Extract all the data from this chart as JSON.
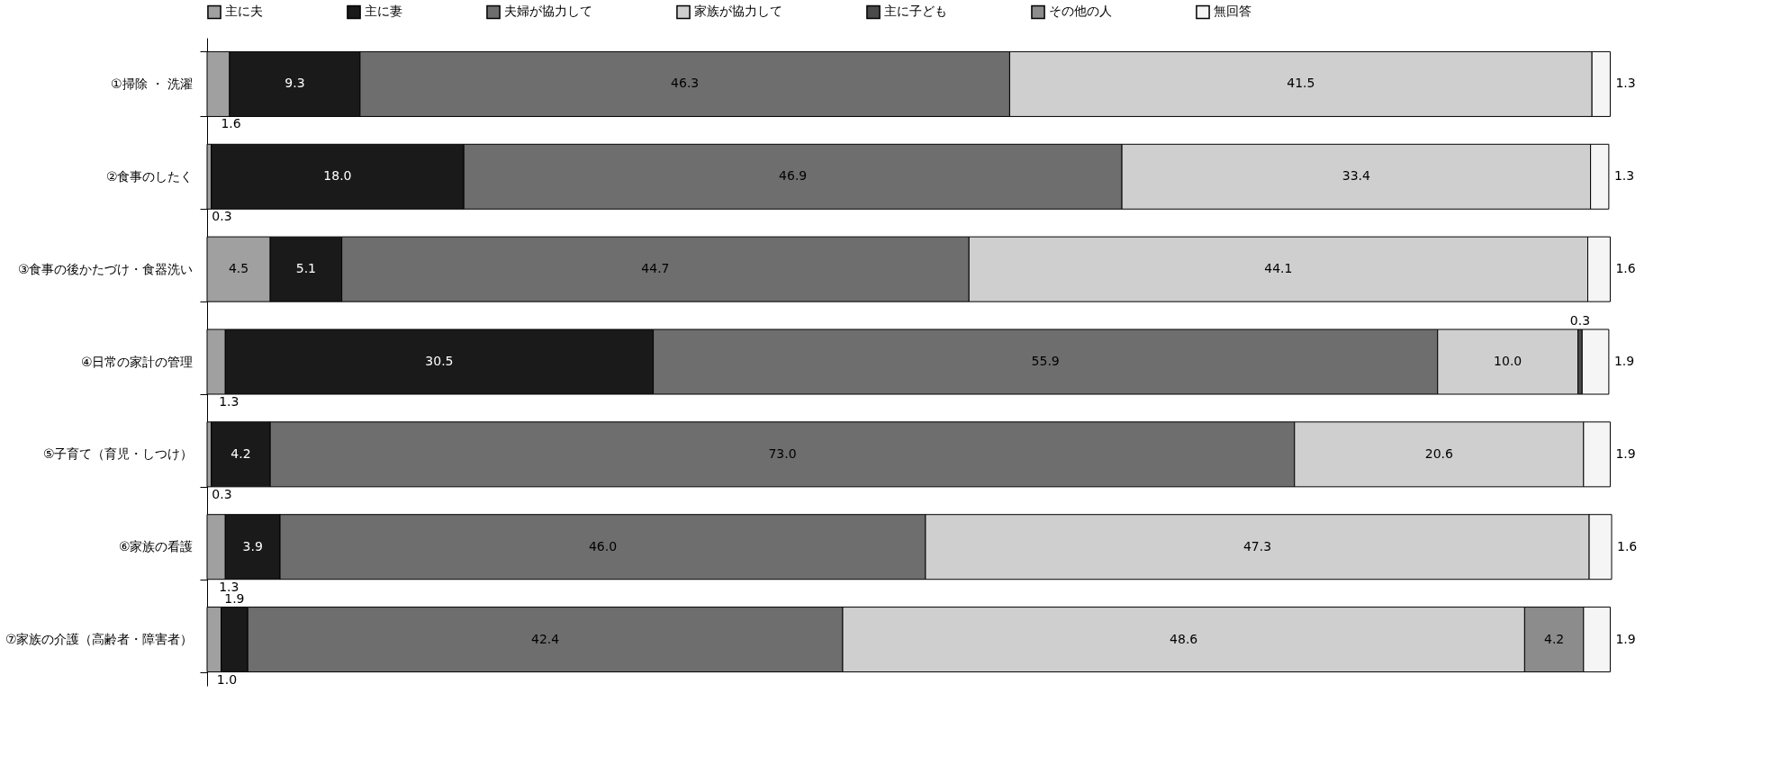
{
  "chart_data": {
    "type": "bar",
    "orientation": "horizontal",
    "stacked": true,
    "legend": "top",
    "grid": false,
    "categories": [
      "①掃除 ・ 洗濯",
      "②食事のしたく",
      "③食事の後かたづけ・食器洗い",
      "④日常の家計の管理",
      "⑤子育て（育児・しつけ）",
      "⑥家族の看護",
      "⑦家族の介護（高齢者・障害者）"
    ],
    "series": [
      {
        "name": "主に夫",
        "color": "#a0a0a0",
        "values": [
          1.6,
          0.3,
          4.5,
          1.3,
          0.3,
          1.3,
          1.0
        ],
        "value_labels": [
          "1.6",
          "0.3",
          "4.5",
          "1.3",
          "0.3",
          "1.3",
          "1.0"
        ]
      },
      {
        "name": "主に妻",
        "color": "#1a1a1a",
        "values": [
          9.3,
          18.0,
          5.1,
          30.5,
          4.2,
          3.9,
          1.9
        ],
        "value_labels": [
          "9.3",
          "18.0",
          "5.1",
          "30.5",
          "4.2",
          "3.9",
          "1.9"
        ]
      },
      {
        "name": "夫婦が協力して",
        "color": "#6e6e6e",
        "values": [
          46.3,
          46.9,
          44.7,
          55.9,
          73.0,
          46.0,
          42.4
        ],
        "value_labels": [
          "46.3",
          "46.9",
          "44.7",
          "55.9",
          "73.0",
          "46.0",
          "42.4"
        ]
      },
      {
        "name": "家族が協力して",
        "color": "#cfcfcf",
        "values": [
          41.5,
          33.4,
          44.1,
          10.0,
          20.6,
          47.3,
          48.6
        ],
        "value_labels": [
          "41.5",
          "33.4",
          "44.1",
          "10.0",
          "20.6",
          "47.3",
          "48.6"
        ]
      },
      {
        "name": "主に子ども",
        "color": "#4a4a4a",
        "values": [
          null,
          null,
          null,
          0.3,
          null,
          null,
          null
        ],
        "value_labels": [
          null,
          null,
          null,
          "0.3",
          null,
          null,
          null
        ]
      },
      {
        "name": "その他の人",
        "color": "#8c8c8c",
        "values": [
          null,
          null,
          null,
          null,
          null,
          null,
          4.2
        ],
        "value_labels": [
          null,
          null,
          null,
          null,
          null,
          null,
          "4.2"
        ]
      },
      {
        "name": "無回答",
        "color": "#f5f5f5",
        "values": [
          1.3,
          1.3,
          1.6,
          1.9,
          1.9,
          1.6,
          1.9
        ],
        "value_labels": [
          "1.3",
          "1.3",
          "1.6",
          "1.9",
          "1.9",
          "1.6",
          "1.9"
        ]
      }
    ]
  }
}
